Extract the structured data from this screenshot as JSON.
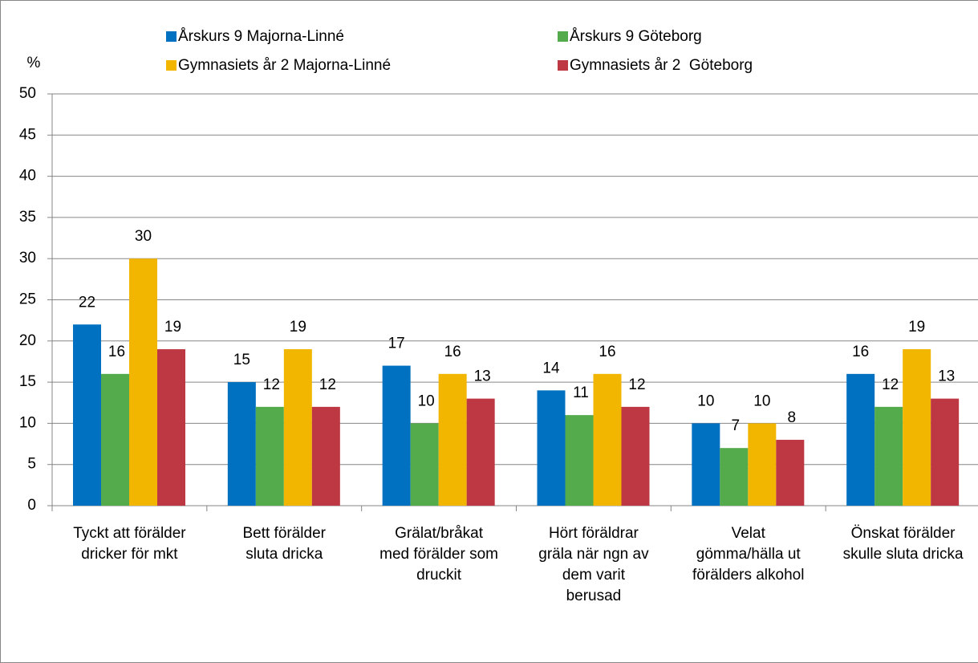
{
  "chart_data": {
    "type": "bar",
    "y_label": "%",
    "categories": [
      "Tyckt att förälder\ndricker för mkt",
      "Bett förälder\nsluta dricka",
      "Grälat/bråkat\nmed förälder som\ndruckit",
      "Hört föräldrar\ngräla när ngn av\ndem varit\nberusad",
      "Velat\ngömma/hälla ut\nförälders alkohol",
      "Önskat förälder\nskulle sluta dricka"
    ],
    "series": [
      {
        "name": "Årskurs 9 Majorna-Linné",
        "color": "#0070c0",
        "values": [
          22,
          15,
          17,
          14,
          10,
          16
        ]
      },
      {
        "name": "Årskurs 9 Göteborg",
        "color": "#53ab4b",
        "values": [
          16,
          12,
          10,
          11,
          7,
          12
        ]
      },
      {
        "name": "Gymnasiets år 2 Majorna-Linné",
        "color": "#f2b600",
        "values": [
          30,
          19,
          16,
          16,
          10,
          19
        ]
      },
      {
        "name": "Gymnasiets år 2  Göteborg",
        "color": "#be3844",
        "values": [
          19,
          12,
          13,
          12,
          8,
          13
        ]
      }
    ],
    "ylim": [
      0,
      50
    ],
    "yticks": [
      0,
      5,
      10,
      15,
      20,
      25,
      30,
      35,
      40,
      45,
      50
    ],
    "grid": true
  }
}
